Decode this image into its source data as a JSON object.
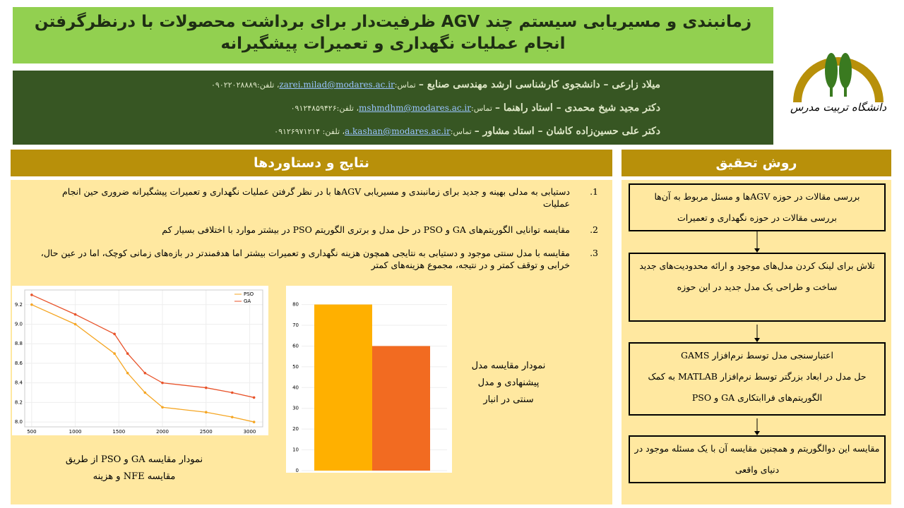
{
  "header": {
    "title": "زمانبندی و مسیریابی سیستم چند AGV ظرفیت‌دار برای برداشت محصولات با درنظرگرفتن انجام عملیات نگهداری و تعمیرات پیشگیرانه",
    "authors": [
      {
        "text": "میلاد زارعی – دانشجوی کارشناسی ارشد مهندسی صنایع –",
        "contact": "تماس:",
        "email": "zarei.milad@modares.ac.ir",
        "phone": "، تلفن:۰۹۰۲۲۰۲۸۸۸۹"
      },
      {
        "text": "دکتر مجید شیخ محمدی – استاد راهنما –",
        "contact": "تماس:",
        "email": "mshmdhm@modares.ac.ir",
        "phone": "، تلفن:۰۹۱۲۴۸۵۹۴۲۶"
      },
      {
        "text": "دکتر علی حسین‌زاده کاشان – استاد مشاور –",
        "contact": "تماس:",
        "email": "a.kashan@modares.ac.ir",
        "phone": "، تلفن: ۰۹۱۲۶۹۷۱۲۱۴"
      }
    ],
    "logo_text": "دانشگاه تربیت مدرس"
  },
  "method": {
    "heading": "روش تحقیق",
    "steps": [
      [
        "بررسی مقالات در حوزه AGVها و مسئل مربوط به آن‌ها",
        "بررسی مقالات در حوزه نگهداری و تعمیرات"
      ],
      [
        "تلاش برای لینک کردن مدل‌های موجود و ارائه محدودیت‌های جدید",
        "ساخت و طراحی یک مدل جدید در این حوزه"
      ],
      [
        "اعتبارسنجی مدل توسط نرم‌افزار GAMS",
        "حل مدل در ابعاد بزرگتر توسط نرم‌افزار MATLAB به کمک الگوریتم‌های فراابتکاری GA و PSO"
      ],
      [
        "مقایسه این دوالگوریتم و همچنین مقایسه آن با یک مسئله موجود در دنیای واقعی"
      ]
    ]
  },
  "results": {
    "heading": "نتایج و دستاوردها",
    "items": [
      {
        "number": "1.",
        "text": "دستیابی به مدلی بهینه و جدید برای زمانبندی و مسیریابی AGVها با در نظر گرفتن عملیات نگهداری و تعمیرات پیشگیرانه ضروری حین انجام عملیات"
      },
      {
        "number": "2.",
        "text": "مقایسه توانایی الگوریتم‌های GA و PSO در حل مدل و برتری الگوریتم PSO در بیشتر موارد با اختلافی بسیار کم"
      },
      {
        "number": "3.",
        "text": "مقایسه با مدل سنتی موجود و دستیابی به نتایجی همچون هزینه نگهداری و تعمیرات بیشتر اما هدفمندتر در بازه‌های زمانی کوچک، اما در عین حال، خرابی و توقف کمتر و در نتیجه، مجموع هزینه‌های کمتر"
      }
    ],
    "line_chart": {
      "type": "line",
      "x": [
        500,
        1000,
        1450,
        1600,
        1800,
        2000,
        2500,
        2800,
        3050
      ],
      "series": [
        {
          "name": "PSO",
          "color": "#f5a623",
          "values": [
            9.2,
            9.0,
            8.7,
            8.5,
            8.3,
            8.15,
            8.1,
            8.05,
            8.0
          ]
        },
        {
          "name": "GA",
          "color": "#e8532a",
          "values": [
            9.3,
            9.1,
            8.9,
            8.7,
            8.5,
            8.4,
            8.35,
            8.3,
            8.25
          ]
        }
      ],
      "xlim": [
        420,
        3150
      ],
      "ylim": [
        7.95,
        9.35
      ],
      "xticks": [
        500,
        1000,
        1500,
        2000,
        2500,
        3000
      ],
      "yticks": [
        {
          "value": 8.0,
          "label": "8.0"
        },
        8.2,
        8.4,
        8.6,
        8.8,
        {
          "value": 9.0,
          "label": "9.0"
        },
        9.2
      ],
      "grid": true,
      "legend": "top-right",
      "caption": "نمودار مقایسه GA و PSO از طریق مقایسه NFE و هزینه"
    },
    "bar_chart": {
      "type": "bar",
      "values": [
        80,
        60
      ],
      "colors": [
        "#ffb000",
        "#f26b21"
      ],
      "ylim": [
        0,
        87
      ],
      "yticks": [
        0,
        10,
        20,
        30,
        40,
        50,
        60,
        70,
        80
      ],
      "grid": true,
      "caption": "نمودار مقایسه مدل پیشنهادی و مدل سنتی در انبار"
    }
  }
}
